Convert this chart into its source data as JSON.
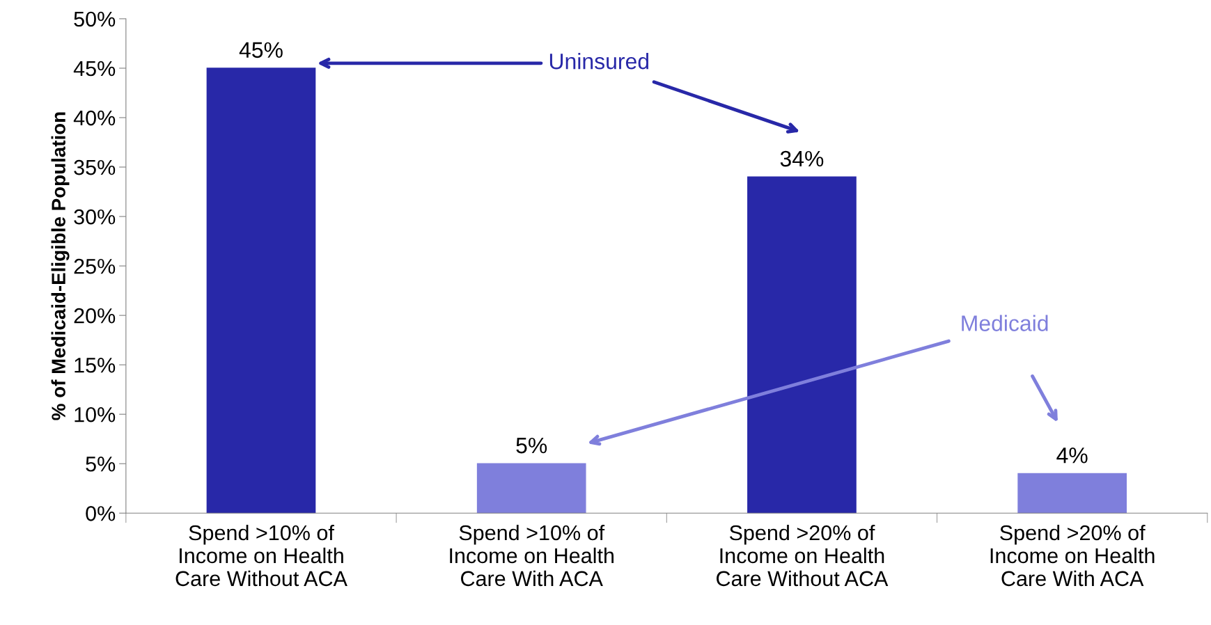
{
  "chart_data": {
    "type": "bar",
    "ylabel": "% of Medicaid-Eligible Population",
    "categories": [
      "Spend >10% of\nIncome on Health\nCare Without ACA",
      "Spend >10% of\nIncome on Health\nCare With ACA",
      "Spend >20% of\nIncome on Health\nCare Without ACA",
      "Spend >20% of\nIncome on Health\nCare With ACA"
    ],
    "series": [
      {
        "name": "Uninsured",
        "color": "#2828a8",
        "values": [
          45,
          null,
          34,
          null
        ]
      },
      {
        "name": "Medicaid",
        "color": "#7f7fdc",
        "values": [
          null,
          5,
          null,
          4
        ]
      }
    ],
    "value_labels": [
      "45%",
      "5%",
      "34%",
      "4%"
    ],
    "ylim": [
      0,
      50
    ],
    "yticks": [
      {
        "value": 0,
        "label": "0%"
      },
      {
        "value": 5,
        "label": "5%"
      },
      {
        "value": 10,
        "label": "10%"
      },
      {
        "value": 15,
        "label": "15%"
      },
      {
        "value": 20,
        "label": "20%"
      },
      {
        "value": 25,
        "label": "25%"
      },
      {
        "value": 30,
        "label": "30%"
      },
      {
        "value": 35,
        "label": "35%"
      },
      {
        "value": 40,
        "label": "40%"
      },
      {
        "value": 45,
        "label": "45%"
      },
      {
        "value": 50,
        "label": "50%"
      }
    ],
    "grid": false,
    "legend": false
  }
}
